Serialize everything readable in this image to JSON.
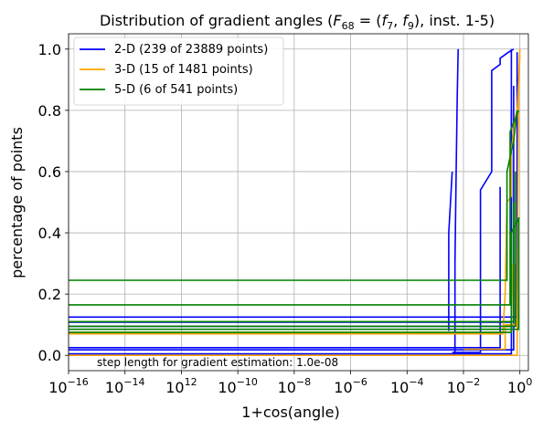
{
  "chart_data": {
    "type": "line",
    "title": "Distribution of gradient angles ($F_{68} = (f_7, f_9)$, inst. 1-5)",
    "title_parts": {
      "prefix": "Distribution of gradient angles (",
      "F": "F",
      "F_sub": "68",
      "eq": " = (",
      "f1": "f",
      "f1_sub": "7",
      "sep": ", ",
      "f2": "f",
      "f2_sub": "9",
      "suffix": "), inst. 1-5)"
    },
    "xlabel": "1+cos(angle)",
    "ylabel": "percentage of points",
    "x_scale": "log",
    "xlim": [
      1e-16,
      2.0
    ],
    "ylim": [
      -0.05,
      1.05
    ],
    "grid": true,
    "legend_position": "top-left",
    "x_ticks": [
      {
        "value": 1e-16,
        "base": "10",
        "exp": "−16"
      },
      {
        "value": 1e-14,
        "base": "10",
        "exp": "−14"
      },
      {
        "value": 1e-12,
        "base": "10",
        "exp": "12"
      },
      {
        "value": 1e-10,
        "base": "10",
        "exp": "−10"
      },
      {
        "value": 1e-08,
        "base": "10",
        "exp": "−8"
      },
      {
        "value": 1e-06,
        "base": "10",
        "exp": "−6"
      },
      {
        "value": 0.0001,
        "base": "10",
        "exp": "−4"
      },
      {
        "value": 0.01,
        "base": "10",
        "exp": "−2"
      },
      {
        "value": 1,
        "base": "10",
        "exp": "0"
      }
    ],
    "y_ticks": [
      {
        "value": 0.0,
        "label": "0.0"
      },
      {
        "value": 0.2,
        "label": "0.2"
      },
      {
        "value": 0.4,
        "label": "0.4"
      },
      {
        "value": 0.6,
        "label": "0.6"
      },
      {
        "value": 0.8,
        "label": "0.8"
      },
      {
        "value": 1.0,
        "label": "1.0"
      }
    ],
    "annotation": "step length for gradient estimation: 1.0e-08",
    "series": [
      {
        "name": "2-D (239 of 23889 points)",
        "color": "#0000ff",
        "lines": [
          [
            [
              0.005,
              0.0
            ],
            [
              0.005,
              0.3
            ],
            [
              0.0055,
              0.6
            ],
            [
              0.006,
              0.85
            ],
            [
              0.0065,
              1.0
            ]
          ],
          [
            [
              1e-16,
              0.005
            ],
            [
              0.5,
              0.005
            ],
            [
              0.5,
              1.0
            ]
          ],
          [
            [
              1e-16,
              0.018
            ],
            [
              0.6,
              0.018
            ],
            [
              0.6,
              0.88
            ]
          ],
          [
            [
              1e-16,
              0.025
            ],
            [
              0.2,
              0.025
            ],
            [
              0.2,
              0.55
            ]
          ],
          [
            [
              1e-16,
              0.095
            ],
            [
              0.7,
              0.095
            ],
            [
              0.7,
              0.3
            ]
          ],
          [
            [
              1e-16,
              0.108
            ],
            [
              0.5,
              0.108
            ],
            [
              0.5,
              0.8
            ]
          ],
          [
            [
              1e-16,
              0.125
            ],
            [
              0.8,
              0.125
            ],
            [
              0.8,
              0.99
            ]
          ],
          [
            [
              0.003,
              0.08
            ],
            [
              0.003,
              0.4
            ],
            [
              0.004,
              0.6
            ]
          ],
          [
            [
              0.004,
              0.01
            ],
            [
              0.04,
              0.01
            ],
            [
              0.04,
              0.54
            ],
            [
              0.1,
              0.6
            ],
            [
              0.1,
              0.93
            ],
            [
              0.2,
              0.95
            ],
            [
              0.2,
              0.97
            ],
            [
              0.4,
              0.99
            ],
            [
              0.6,
              1.0
            ]
          ]
        ]
      },
      {
        "name": "3-D (15 of 1481 points)",
        "color": "#ffa500",
        "lines": [
          [
            [
              1e-16,
              0.0
            ],
            [
              0.8,
              0.0
            ],
            [
              0.8,
              0.02
            ],
            [
              0.9,
              0.9
            ],
            [
              1.0,
              1.0
            ]
          ],
          [
            [
              1e-16,
              0.07
            ],
            [
              0.25,
              0.07
            ],
            [
              0.3,
              0.2
            ],
            [
              0.35,
              0.5
            ],
            [
              0.5,
              0.52
            ],
            [
              0.5,
              0.67
            ],
            [
              0.7,
              0.78
            ],
            [
              0.8,
              0.8
            ],
            [
              1.0,
              0.98
            ]
          ],
          [
            [
              0.01,
              0.02
            ],
            [
              0.3,
              0.02
            ],
            [
              0.3,
              0.1
            ],
            [
              0.6,
              0.1
            ],
            [
              0.9,
              0.12
            ]
          ],
          [
            [
              1e-16,
              0.075
            ],
            [
              0.5,
              0.075
            ],
            [
              0.55,
              0.3
            ]
          ]
        ]
      },
      {
        "name": "5-D (6 of 541 points)",
        "color": "#008000",
        "lines": [
          [
            [
              1e-16,
              0.245
            ],
            [
              0.35,
              0.245
            ],
            [
              0.35,
              0.6
            ],
            [
              0.6,
              0.7
            ],
            [
              0.8,
              0.8
            ]
          ],
          [
            [
              1e-16,
              0.165
            ],
            [
              0.45,
              0.165
            ],
            [
              0.45,
              0.73
            ],
            [
              0.9,
              0.8
            ]
          ],
          [
            [
              1e-16,
              0.085
            ],
            [
              0.9,
              0.085
            ],
            [
              0.9,
              0.45
            ]
          ],
          [
            [
              1e-16,
              0.075
            ],
            [
              0.5,
              0.075
            ],
            [
              0.5,
              0.4
            ],
            [
              0.95,
              0.45
            ]
          ],
          [
            [
              1e-16,
              0.095
            ],
            [
              0.7,
              0.095
            ],
            [
              0.7,
              0.6
            ]
          ],
          [
            [
              1e-16,
              0.11
            ],
            [
              0.6,
              0.11
            ],
            [
              0.6,
              0.5
            ]
          ]
        ]
      }
    ]
  }
}
